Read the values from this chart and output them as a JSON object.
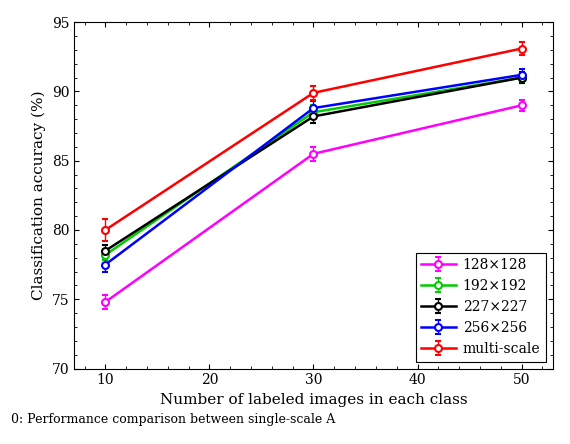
{
  "x": [
    10,
    30,
    50
  ],
  "series": {
    "128x128": {
      "y": [
        74.8,
        85.5,
        89.0
      ],
      "yerr": [
        0.5,
        0.5,
        0.4
      ],
      "color": "#ff00ff",
      "label": "128×128"
    },
    "192x192": {
      "y": [
        78.2,
        88.5,
        91.0
      ],
      "yerr": [
        0.4,
        0.5,
        0.4
      ],
      "color": "#00cc00",
      "label": "192×192"
    },
    "227x227": {
      "y": [
        78.5,
        88.2,
        91.0
      ],
      "yerr": [
        0.4,
        0.5,
        0.4
      ],
      "color": "#000000",
      "label": "227×227"
    },
    "256x256": {
      "y": [
        77.5,
        88.8,
        91.2
      ],
      "yerr": [
        0.5,
        0.5,
        0.4
      ],
      "color": "#0000ff",
      "label": "256×256"
    },
    "multi-scale": {
      "y": [
        80.0,
        89.9,
        93.1
      ],
      "yerr": [
        0.8,
        0.5,
        0.5
      ],
      "color": "#ff0000",
      "label": "multi-scale"
    }
  },
  "xlabel": "Number of labeled images in each class",
  "ylabel": "Classification accuracy (%)",
  "caption": "0: Performance comparison between single-scale A...",
  "ylim": [
    70,
    95
  ],
  "xlim": [
    7,
    53
  ],
  "xticks": [
    10,
    20,
    30,
    40,
    50
  ],
  "yticks": [
    70,
    75,
    80,
    85,
    90,
    95
  ],
  "legend_loc": "lower right",
  "capsize": 2,
  "linewidth": 1.8,
  "markersize": 5,
  "fig_width": 5.7,
  "fig_height": 4.44,
  "dpi": 100
}
